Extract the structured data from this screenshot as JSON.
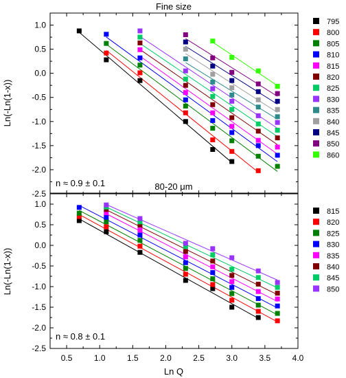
{
  "chart_data": [
    {
      "type": "scatter",
      "title": "Fine size",
      "xlabel": "",
      "ylabel": "Ln(-Ln(1-x))",
      "xlim": [
        0.25,
        4.0
      ],
      "ylim": [
        -2.5,
        1.25
      ],
      "yticks": [
        "1.0",
        "0.5",
        "0.0",
        "-0.5",
        "-1.0",
        "-1.5",
        "-2.0",
        "-2.5"
      ],
      "annotation": "n ≈ 0.9 ± 0.1",
      "legend_position": "right",
      "series": [
        {
          "name": "795",
          "color": "#000000",
          "x": [
            0.69,
            1.1,
            1.61,
            2.3,
            2.71,
            3.0
          ],
          "y": [
            0.88,
            0.28,
            -0.15,
            -1.0,
            -1.58,
            -1.83
          ]
        },
        {
          "name": "800",
          "color": "#ff0000",
          "x": [
            1.1,
            1.61,
            2.3,
            2.71,
            3.0,
            3.4
          ],
          "y": [
            0.42,
            0.01,
            -0.82,
            -1.38,
            -1.62,
            -2.02
          ]
        },
        {
          "name": "805",
          "color": "#008000",
          "x": [
            1.1,
            1.61,
            2.3,
            2.71,
            3.0,
            3.4,
            3.69
          ],
          "y": [
            0.62,
            0.17,
            -0.68,
            -1.14,
            -1.4,
            -1.72,
            -1.93
          ]
        },
        {
          "name": "810",
          "color": "#0000ff",
          "x": [
            1.1,
            1.61,
            2.3,
            2.71,
            3.0,
            3.4,
            3.69
          ],
          "y": [
            0.81,
            0.32,
            -0.55,
            -0.98,
            -1.23,
            -1.5,
            -1.7
          ]
        },
        {
          "name": "815",
          "color": "#ff00ff",
          "x": [
            1.61,
            2.3,
            2.71,
            3.0,
            3.4,
            3.69
          ],
          "y": [
            0.49,
            -0.4,
            -0.82,
            -1.1,
            -1.39,
            -1.53
          ]
        },
        {
          "name": "820",
          "color": "#800000",
          "x": [
            1.61,
            2.3,
            2.71,
            3.0,
            3.4,
            3.69
          ],
          "y": [
            0.63,
            -0.25,
            -0.65,
            -0.92,
            -1.2,
            -1.34
          ]
        },
        {
          "name": "825",
          "color": "#00cc66",
          "x": [
            1.61,
            2.3,
            2.71,
            3.0,
            3.4,
            3.69
          ],
          "y": [
            0.75,
            -0.12,
            -0.48,
            -0.75,
            -1.05,
            -1.18
          ]
        },
        {
          "name": "830",
          "color": "#9933ff",
          "x": [
            1.61,
            2.3,
            2.71,
            3.0,
            3.4,
            3.69
          ],
          "y": [
            0.88,
            0.05,
            -0.32,
            -0.58,
            -0.88,
            -1.02
          ]
        },
        {
          "name": "835",
          "color": "#2e8b8b",
          "x": [
            2.3,
            2.71,
            3.0,
            3.4,
            3.69
          ],
          "y": [
            0.3,
            -0.18,
            -0.45,
            -0.7,
            -0.9
          ]
        },
        {
          "name": "840",
          "color": "#a0a0a0",
          "x": [
            2.3,
            2.71,
            3.0,
            3.4,
            3.69
          ],
          "y": [
            0.5,
            -0.02,
            -0.3,
            -0.55,
            -0.75
          ]
        },
        {
          "name": "845",
          "color": "#000080",
          "x": [
            2.3,
            2.71,
            3.0,
            3.4,
            3.69
          ],
          "y": [
            0.65,
            0.15,
            -0.15,
            -0.38,
            -0.58
          ]
        },
        {
          "name": "850",
          "color": "#800080",
          "x": [
            2.3,
            2.71,
            3.0,
            3.4,
            3.69
          ],
          "y": [
            0.8,
            0.32,
            0.02,
            -0.22,
            -0.42
          ]
        },
        {
          "name": "860",
          "color": "#33ff00",
          "x": [
            2.71,
            3.0,
            3.4,
            3.69
          ],
          "y": [
            0.67,
            0.33,
            0.05,
            -0.27
          ]
        }
      ]
    },
    {
      "type": "scatter",
      "title": "80-20 μm",
      "xlabel": "Ln Q",
      "ylabel": "Ln(-Ln(1-x))",
      "xlim": [
        0.25,
        4.0
      ],
      "ylim": [
        -2.5,
        1.25
      ],
      "xticks": [
        "0.5",
        "1.0",
        "1.5",
        "2.0",
        "2.5",
        "3.0",
        "3.5",
        "4.0"
      ],
      "yticks": [
        "1.0",
        "0.5",
        "0.0",
        "-0.5",
        "-1.0",
        "-1.5",
        "-2.0",
        "-2.5"
      ],
      "annotation": "n ≈ 0.8 ± 0.1",
      "legend_position": "right",
      "series": [
        {
          "name": "815",
          "color": "#000000",
          "x": [
            0.69,
            1.1,
            1.61,
            2.3,
            2.71,
            3.0,
            3.4
          ],
          "y": [
            0.6,
            0.33,
            -0.17,
            -0.85,
            -1.05,
            -1.5,
            -1.75
          ]
        },
        {
          "name": "820",
          "color": "#ff0000",
          "x": [
            0.69,
            1.1,
            1.61,
            2.3,
            2.71,
            3.0,
            3.4,
            3.69
          ],
          "y": [
            0.7,
            0.45,
            -0.02,
            -0.7,
            -0.95,
            -1.33,
            -1.6,
            -1.83
          ]
        },
        {
          "name": "825",
          "color": "#008000",
          "x": [
            0.69,
            1.1,
            1.61,
            2.3,
            2.71,
            3.0,
            3.4,
            3.69
          ],
          "y": [
            0.78,
            0.57,
            0.12,
            -0.56,
            -0.81,
            -1.17,
            -1.45,
            -1.65
          ]
        },
        {
          "name": "830",
          "color": "#0000ff",
          "x": [
            0.69,
            1.1,
            1.61,
            2.3,
            2.71,
            3.0,
            3.4,
            3.69
          ],
          "y": [
            0.92,
            0.68,
            0.25,
            -0.42,
            -0.66,
            -1.02,
            -1.29,
            -1.47
          ]
        },
        {
          "name": "835",
          "color": "#ff00ff",
          "x": [
            1.1,
            1.61,
            2.3,
            2.71,
            3.0,
            3.4,
            3.69
          ],
          "y": [
            0.79,
            0.37,
            -0.28,
            -0.52,
            -0.88,
            -1.12,
            -1.3
          ]
        },
        {
          "name": "840",
          "color": "#800000",
          "x": [
            1.1,
            1.61,
            2.3,
            2.71,
            3.0,
            3.4,
            3.69
          ],
          "y": [
            0.87,
            0.49,
            -0.15,
            -0.38,
            -0.73,
            -0.94,
            -1.16
          ]
        },
        {
          "name": "845",
          "color": "#00cc66",
          "x": [
            1.1,
            1.61,
            2.3,
            2.71,
            3.0,
            3.4,
            3.69
          ],
          "y": [
            0.93,
            0.57,
            -0.03,
            -0.23,
            -0.58,
            -0.78,
            -1.02
          ]
        },
        {
          "name": "850",
          "color": "#9933ff",
          "x": [
            1.1,
            1.61,
            2.3,
            2.71,
            3.0,
            3.4,
            3.69
          ],
          "y": [
            0.98,
            0.65,
            0.05,
            -0.08,
            -0.3,
            -0.62,
            -0.9
          ]
        }
      ]
    }
  ]
}
